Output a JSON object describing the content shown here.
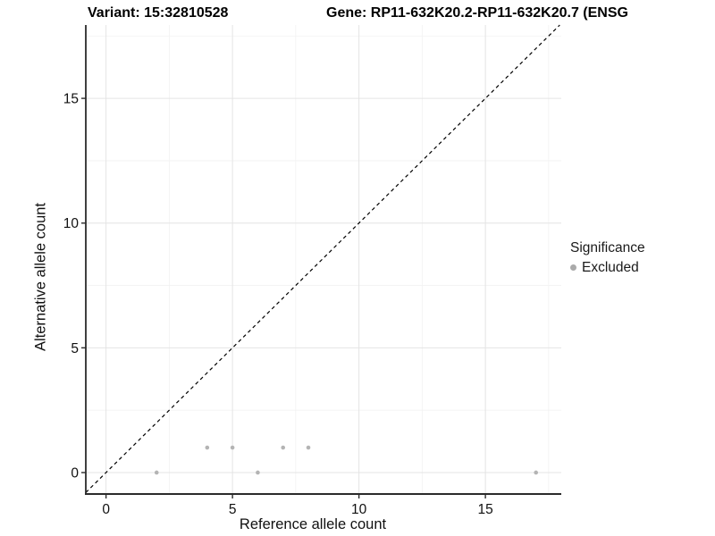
{
  "titles": {
    "variant": "Variant: 15:32810528",
    "gene": "Gene: RP11-632K20.2-RP11-632K20.7 (ENSG"
  },
  "chart_data": {
    "type": "scatter",
    "title": "Variant: 15:32810528   Gene: RP11-632K20.2-RP11-632K20.7 (ENSG",
    "xlabel": "Reference allele count",
    "ylabel": "Alternative allele count",
    "xlim": [
      -0.8,
      18.0
    ],
    "ylim": [
      -0.86,
      17.94
    ],
    "x_ticks": [
      0,
      5,
      10,
      15
    ],
    "y_ticks": [
      0,
      5,
      10,
      15
    ],
    "x_minor_gridlines": [
      2.5,
      7.5,
      12.5,
      17.5
    ],
    "y_minor_gridlines": [
      2.5,
      7.5,
      12.5,
      17.5
    ],
    "grid": true,
    "series": [
      {
        "name": "Excluded",
        "color": "#b4b4b4",
        "points": [
          [
            2,
            0
          ],
          [
            4,
            1
          ],
          [
            5,
            1
          ],
          [
            6,
            0
          ],
          [
            7,
            1
          ],
          [
            8,
            1
          ],
          [
            17,
            0
          ]
        ]
      }
    ],
    "identity_line": {
      "type": "y=x",
      "style": "dashed",
      "color": "#000000"
    },
    "legend": {
      "position": "right",
      "title": "Significance",
      "entries": [
        {
          "label": "Excluded",
          "color": "#aaaaaa"
        }
      ]
    }
  },
  "colors": {
    "background": "#ffffff",
    "grid_major": "#e4e4e4",
    "grid_minor": "#f2f2f2",
    "axis_line": "#2b2b2b",
    "tick_label": "#111111",
    "point": "#b4b4b4"
  }
}
